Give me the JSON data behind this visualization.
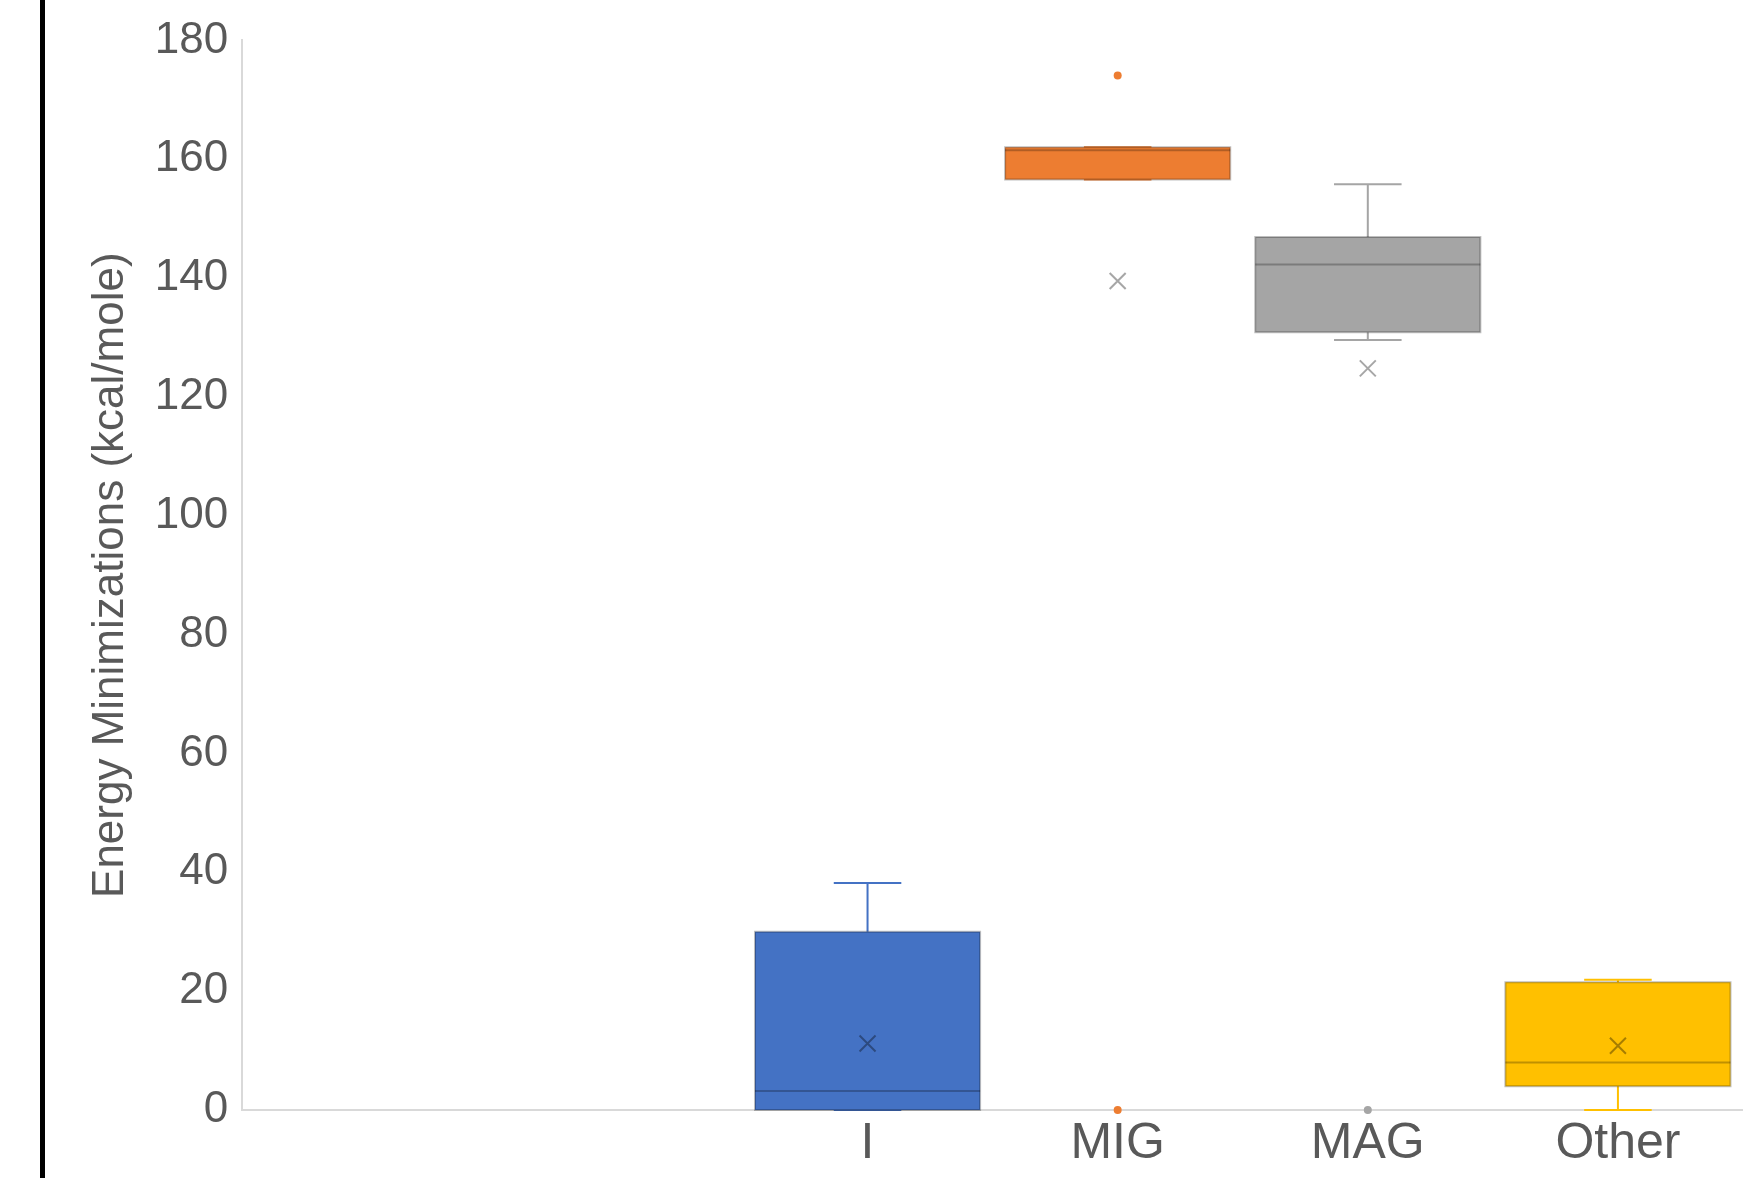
{
  "chart_data": {
    "type": "box",
    "ylabel": "Energy Minimizations (kcal/mole)",
    "categories": [
      null,
      null,
      "I",
      "MIG",
      "MAG",
      "Other"
    ],
    "colors": [
      null,
      null,
      "#4472c4",
      "#ed7d31",
      "#a5a5a5",
      "#ffc000"
    ],
    "boxes": [
      null,
      null,
      {
        "low": 0,
        "q1": 0,
        "median": 3.2,
        "q3": 30,
        "high": 38.2,
        "mean": 11.2
      },
      {
        "low": 156.6,
        "q1": 156.6,
        "median": 161.5,
        "q3": 162,
        "high": 162,
        "mean": 139.5,
        "outliers": [
          174.1,
          0
        ]
      },
      {
        "low": 129.6,
        "q1": 130.9,
        "median": 142.3,
        "q3": 146.9,
        "high": 155.8,
        "mean": 124.8,
        "outliers": [
          0
        ]
      },
      {
        "low": 0,
        "q1": 4,
        "median": 8,
        "q3": 21.5,
        "high": 21.9,
        "mean": 10.8
      }
    ],
    "ylim": [
      0,
      180
    ],
    "yticks": [
      0,
      20,
      40,
      60,
      80,
      100,
      120,
      140,
      160,
      180
    ],
    "grid": false,
    "legend": false,
    "marker": "cross"
  }
}
